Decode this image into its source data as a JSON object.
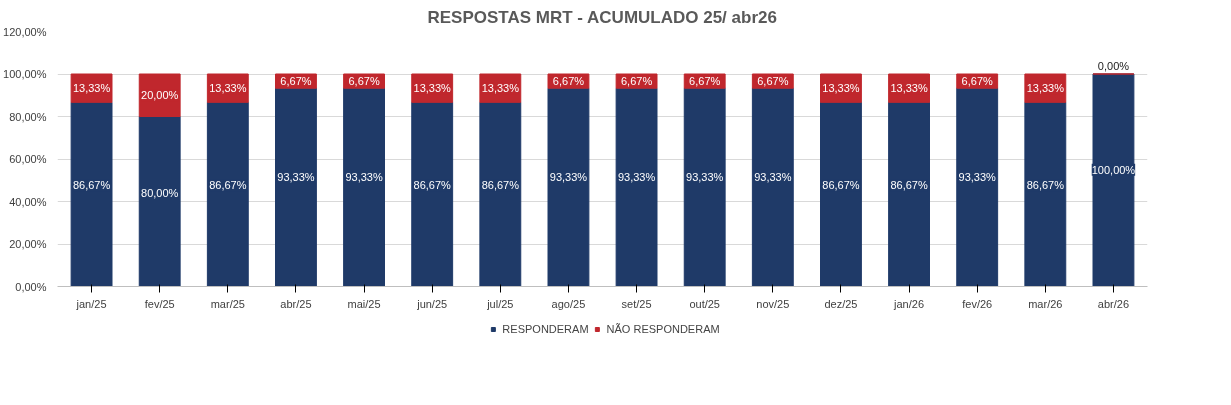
{
  "chart_data": {
    "type": "bar",
    "stacked": true,
    "title": "RESPOSTAS MRT - ACUMULADO 25/ abr26",
    "categories": [
      "jan/25",
      "fev/25",
      "mar/25",
      "abr/25",
      "mai/25",
      "jun/25",
      "jul/25",
      "ago/25",
      "set/25",
      "out/25",
      "nov/25",
      "dez/25",
      "jan/26",
      "fev/26",
      "mar/26",
      "abr/26"
    ],
    "series": [
      {
        "name": "RESPONDERAM",
        "color": "#1f3a68",
        "values": [
          86.67,
          80,
          86.67,
          93.33,
          93.33,
          86.67,
          86.67,
          93.33,
          93.33,
          93.33,
          93.33,
          86.67,
          86.67,
          93.33,
          86.67,
          100
        ],
        "value_labels": [
          "86,67%",
          "80,00%",
          "86,67%",
          "93,33%",
          "93,33%",
          "86,67%",
          "86,67%",
          "93,33%",
          "93,33%",
          "93,33%",
          "93,33%",
          "86,67%",
          "86,67%",
          "93,33%",
          "86,67%",
          "100,00%"
        ]
      },
      {
        "name": "NÃO RESPONDERAM",
        "color": "#c0272d",
        "values": [
          13.33,
          20,
          13.33,
          6.67,
          6.67,
          13.33,
          13.33,
          6.67,
          6.67,
          6.67,
          6.67,
          13.33,
          13.33,
          6.67,
          13.33,
          0
        ],
        "value_labels": [
          "13,33%",
          "20,00%",
          "13,33%",
          "6,67%",
          "6,67%",
          "13,33%",
          "13,33%",
          "6,67%",
          "6,67%",
          "6,67%",
          "6,67%",
          "13,33%",
          "13,33%",
          "6,67%",
          "13,33%",
          "0,00%"
        ]
      }
    ],
    "ylim": [
      0,
      120
    ],
    "yticks": [
      {
        "value": 0,
        "label": "0,00%"
      },
      {
        "value": 20,
        "label": "20,00%"
      },
      {
        "value": 40,
        "label": "40,00%"
      },
      {
        "value": 60,
        "label": "60,00%"
      },
      {
        "value": 80,
        "label": "80,00%"
      },
      {
        "value": 100,
        "label": "100,00%"
      },
      {
        "value": 120,
        "label": "120,00%"
      }
    ],
    "grid": "y",
    "legend": "bottom"
  }
}
